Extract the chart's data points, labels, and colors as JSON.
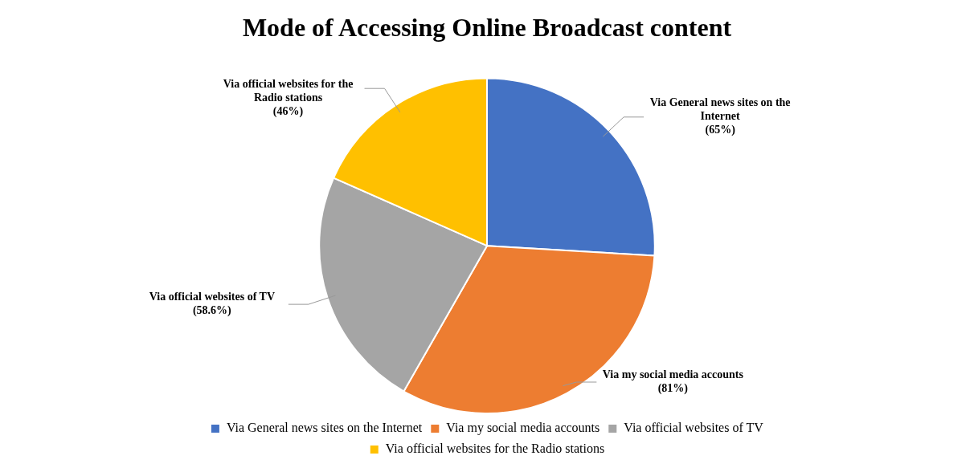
{
  "chart_data": {
    "type": "pie",
    "title": "Mode of Accessing Online Broadcast content",
    "categories": [
      "Via General news sites on the Internet",
      "Via my social media accounts",
      "Via official websites of TV",
      "Via official websites for the Radio stations"
    ],
    "values": [
      65,
      81,
      58.6,
      46
    ],
    "value_labels": [
      "(65%)",
      "(81%)",
      "(58.6%)",
      "(46%)"
    ],
    "colors": [
      "#4472c4",
      "#ed7d31",
      "#a5a5a5",
      "#ffc000"
    ],
    "legend": "bottom"
  }
}
